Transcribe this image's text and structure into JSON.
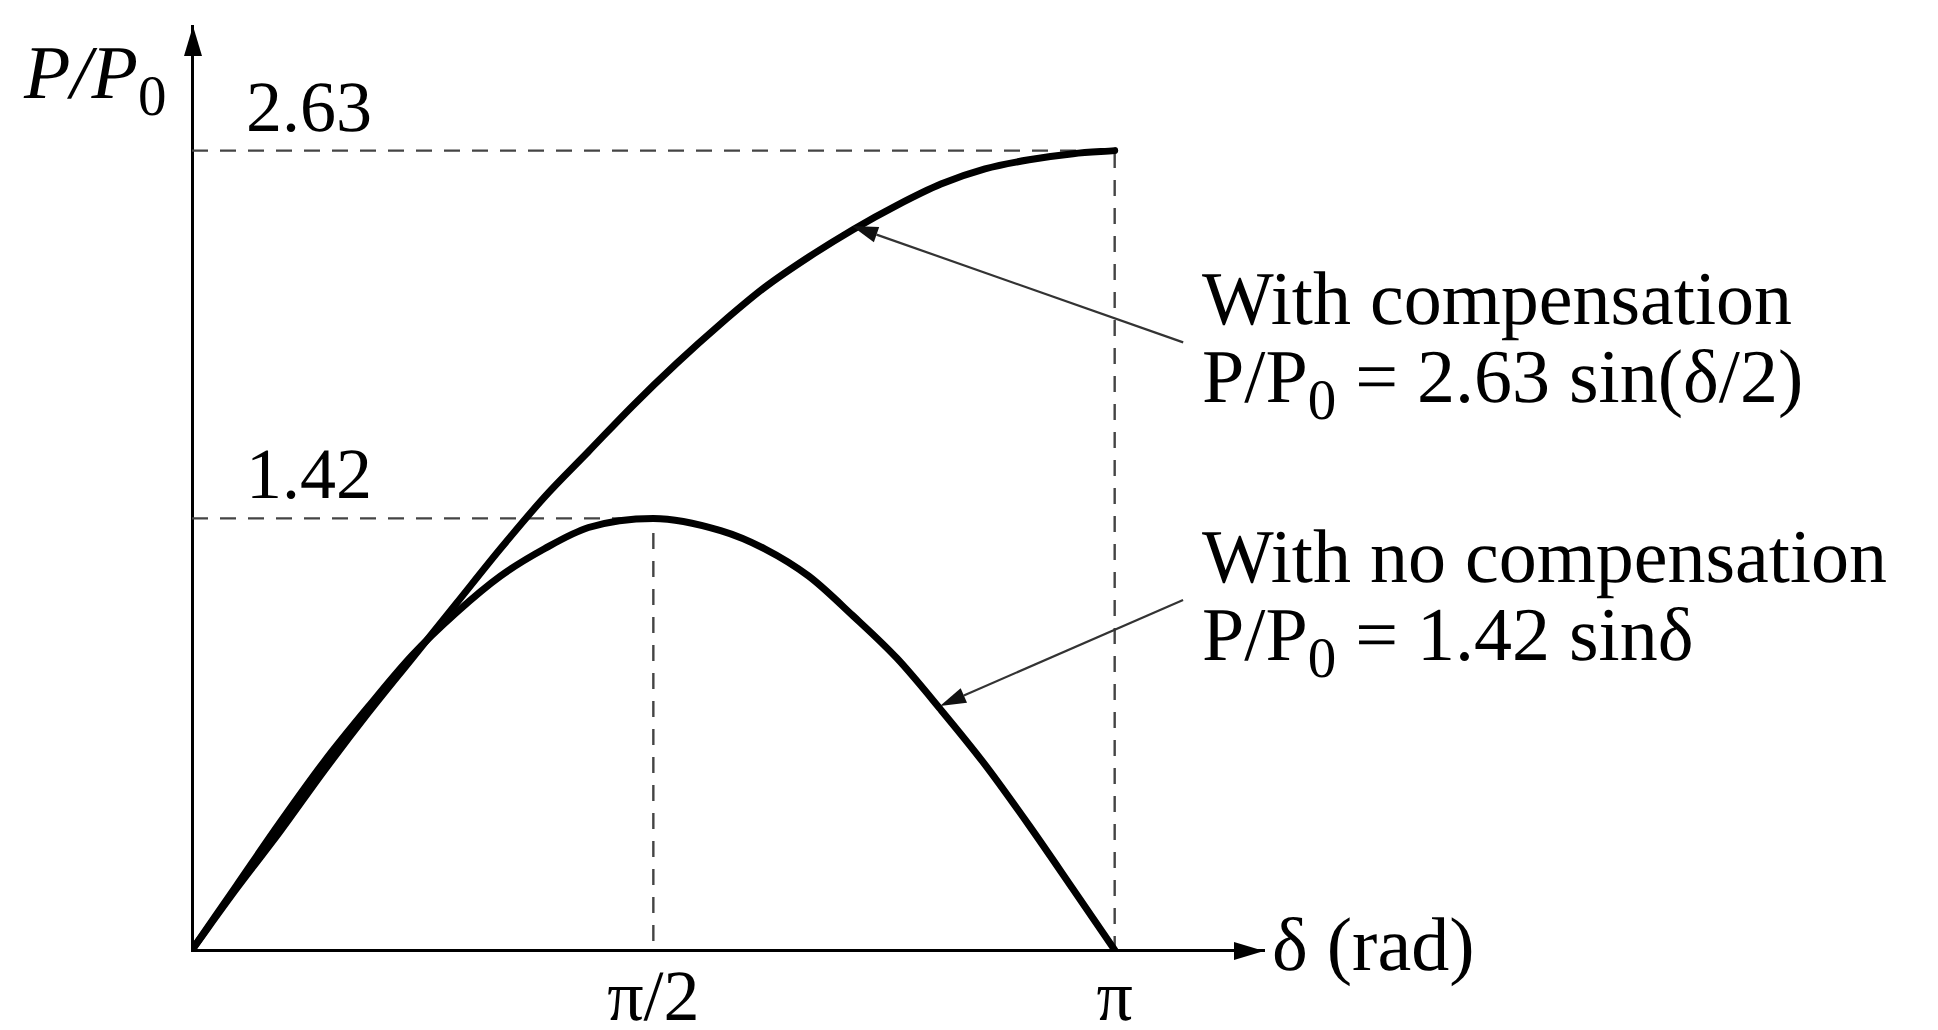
{
  "chart_data": {
    "type": "line",
    "xlabel": "δ (rad)",
    "ylabel": "P/P$_{0}$",
    "xlim": [
      0,
      3.65
    ],
    "ylim": [
      0,
      3.04
    ],
    "xticks": [
      {
        "value": 1.5708,
        "label": "π/2"
      },
      {
        "value": 3.1416,
        "label": "π"
      }
    ],
    "tick_labels": "x",
    "grid": false,
    "legend": false,
    "marker": "none",
    "series": [
      {
        "color": "#000000",
        "line_style": "solid",
        "x": [
          0,
          0.15,
          0.3,
          0.45,
          0.6,
          0.75,
          0.9,
          1.05,
          1.2,
          1.35,
          1.5,
          1.65,
          1.8,
          1.95,
          2.1,
          2.25,
          2.4,
          2.55,
          2.7,
          2.85,
          3.0,
          3.1416
        ],
        "values": [
          0,
          0.2,
          0.39,
          0.59,
          0.78,
          0.96,
          1.14,
          1.32,
          1.49,
          1.64,
          1.79,
          1.93,
          2.06,
          2.18,
          2.28,
          2.37,
          2.45,
          2.52,
          2.57,
          2.6,
          2.62,
          2.63
        ]
      },
      {
        "color": "#000000",
        "line_style": "solid",
        "x": [
          0,
          0.15,
          0.3,
          0.45,
          0.6,
          0.75,
          0.9,
          1.05,
          1.2,
          1.35,
          1.5708,
          1.8,
          1.95,
          2.1,
          2.25,
          2.4,
          2.55,
          2.7,
          2.85,
          3.0,
          3.1416
        ],
        "values": [
          0,
          0.21,
          0.42,
          0.62,
          0.8,
          0.97,
          1.11,
          1.23,
          1.32,
          1.39,
          1.42,
          1.38,
          1.32,
          1.23,
          1.1,
          0.96,
          0.79,
          0.61,
          0.41,
          0.2,
          0
        ]
      },
      {
        "color": "#444444",
        "line_style": "dashed",
        "x": [
          0,
          1.5708,
          1.5708
        ],
        "values": [
          1.42,
          1.42,
          0
        ],
        "value_labels": [
          "1.42",
          null,
          null
        ]
      },
      {
        "color": "#444444",
        "line_style": "dashed",
        "x": [
          0,
          3.1416,
          3.1416
        ],
        "values": [
          2.63,
          2.63,
          0
        ],
        "value_labels": [
          "2.63",
          null,
          null
        ]
      }
    ],
    "annotations": [
      "With compensation\nP/P$_{0}$ = 2.63 sin(δ/2)",
      "With no compensation\nP/P$_{0}$ = 1.42 sinδ"
    ]
  }
}
